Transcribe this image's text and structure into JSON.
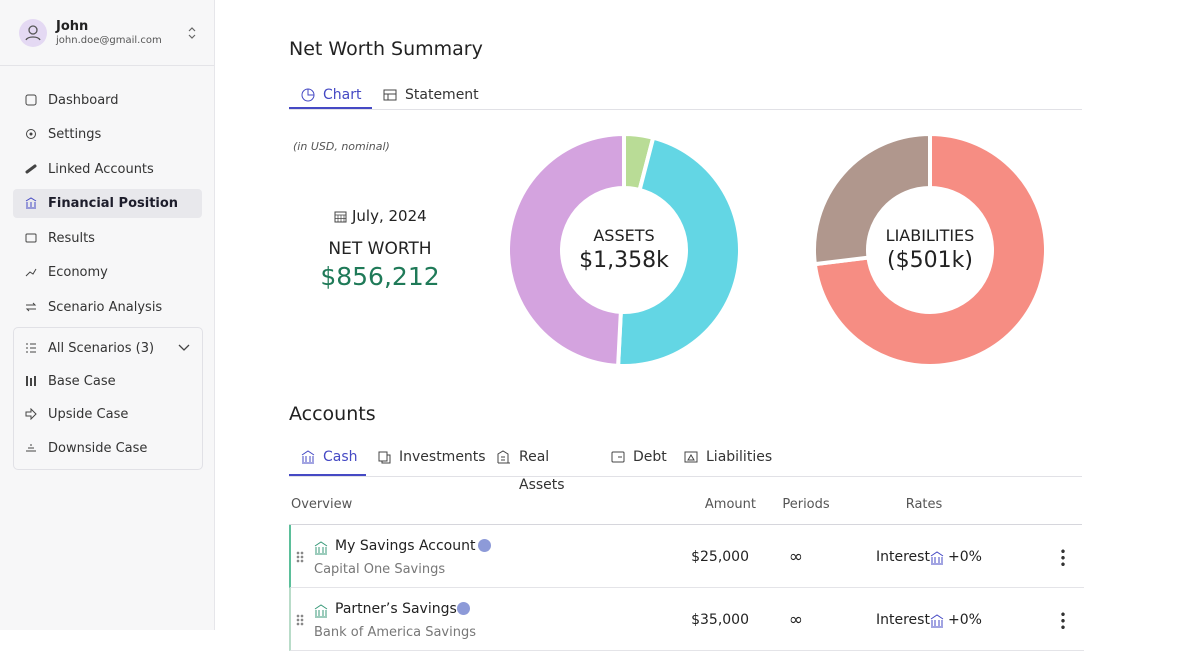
{
  "user": {
    "name": "John",
    "email": "john.doe@gmail.com"
  },
  "nav": [
    "Dashboard",
    "Settings",
    "Linked Accounts",
    "Financial Position",
    "Results",
    "Economy",
    "Scenario Analysis"
  ],
  "scenarios": {
    "header": "All Scenarios (3)",
    "items": [
      "Base Case",
      "Upside Case",
      "Downside Case"
    ]
  },
  "summary": {
    "title": "Net Worth Summary",
    "tabs": [
      "Chart",
      "Statement"
    ],
    "note": "(in USD, nominal)",
    "date": "July, 2024",
    "label": "NET WORTH",
    "value": "$856,212"
  },
  "assets_chart": {
    "type": "pie",
    "label": "ASSETS",
    "total": "$1,358k",
    "segments": [
      {
        "color": "#b9dc96",
        "value": 55
      },
      {
        "color": "#63d6e4",
        "value": 635
      },
      {
        "color": "#d4a3df",
        "value": 668
      }
    ]
  },
  "liabilities_chart": {
    "type": "pie",
    "label": "LIABILITIES",
    "total": "($501k)",
    "segments": [
      {
        "color": "#f68d83",
        "value": 366
      },
      {
        "color": "#b0978d",
        "value": 135
      }
    ]
  },
  "accounts": {
    "title": "Accounts",
    "tabs": [
      "Cash",
      "Investments",
      "Real Assets",
      "Debt",
      "Liabilities"
    ],
    "columns": [
      "Overview",
      "Amount",
      "Periods",
      "Rates"
    ],
    "rows": [
      {
        "name": "My Savings Account",
        "institution": "Capital One Savings",
        "amount": "$25,000",
        "periods": "∞",
        "rate_label": "Interest",
        "rate": "+0%"
      },
      {
        "name": "Partner’s Savings",
        "institution": "Bank of America Savings",
        "amount": "$35,000",
        "periods": "∞",
        "rate_label": "Interest",
        "rate": "+0%"
      }
    ]
  }
}
